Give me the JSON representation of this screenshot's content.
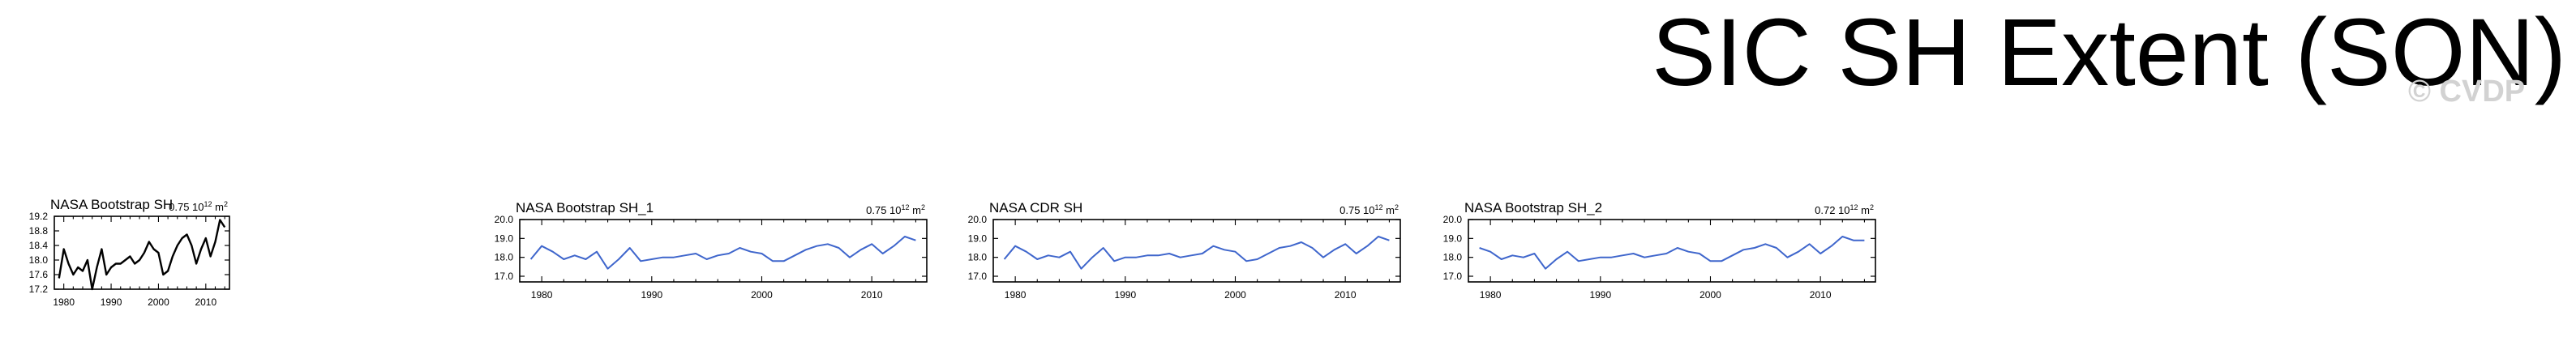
{
  "page": {
    "title": "SIC SH Extent (SON)",
    "watermark": "© CVDP"
  },
  "chart_data": [
    {
      "type": "line",
      "title": "NASA Bootstrap SH",
      "annotation": "0.75 10",
      "annotation_sup": "12",
      "annotation_unit": " m",
      "annotation_unit_sup": "2",
      "line_color": "#000000",
      "xlim": [
        1978,
        2015
      ],
      "ylim": [
        17.2,
        19.2
      ],
      "yticks": [
        "17.2",
        "17.6",
        "18.0",
        "18.4",
        "18.8",
        "19.2"
      ],
      "xticks": [
        "1980",
        "1990",
        "2000",
        "2010"
      ],
      "series": [
        {
          "x": [
            1979,
            1980,
            1981,
            1982,
            1983,
            1984,
            1985,
            1986,
            1987,
            1988,
            1989,
            1990,
            1991,
            1992,
            1993,
            1994,
            1995,
            1996,
            1997,
            1998,
            1999,
            2000,
            2001,
            2002,
            2003,
            2004,
            2005,
            2006,
            2007,
            2008,
            2009,
            2010,
            2011,
            2012,
            2013,
            2014
          ],
          "values": [
            17.5,
            18.3,
            17.9,
            17.6,
            17.8,
            17.7,
            18.0,
            17.2,
            17.8,
            18.3,
            17.6,
            17.8,
            17.9,
            17.9,
            18.0,
            18.1,
            17.9,
            18.0,
            18.2,
            18.5,
            18.3,
            18.2,
            17.6,
            17.7,
            18.1,
            18.4,
            18.6,
            18.7,
            18.4,
            17.9,
            18.3,
            18.6,
            18.1,
            18.5,
            19.1,
            18.9
          ]
        }
      ]
    },
    {
      "type": "line",
      "title": "NASA Bootstrap SH_1",
      "annotation": "0.75 10",
      "annotation_sup": "12",
      "annotation_unit": " m",
      "annotation_unit_sup": "2",
      "line_color": "#3f66cc",
      "xlim": [
        1978,
        2015
      ],
      "ylim": [
        16.7,
        20.0
      ],
      "yticks": [
        "17.0",
        "18.0",
        "19.0",
        "20.0"
      ],
      "xticks": [
        "1980",
        "1990",
        "2000",
        "2010"
      ],
      "series": [
        {
          "x": [
            1979,
            1980,
            1981,
            1982,
            1983,
            1984,
            1985,
            1986,
            1987,
            1988,
            1989,
            1990,
            1991,
            1992,
            1993,
            1994,
            1995,
            1996,
            1997,
            1998,
            1999,
            2000,
            2001,
            2002,
            2003,
            2004,
            2005,
            2006,
            2007,
            2008,
            2009,
            2010,
            2011,
            2012,
            2013,
            2014
          ],
          "values": [
            17.9,
            18.6,
            18.3,
            17.9,
            18.1,
            17.9,
            18.3,
            17.4,
            17.9,
            18.5,
            17.8,
            17.9,
            18.0,
            18.0,
            18.1,
            18.2,
            17.9,
            18.1,
            18.2,
            18.5,
            18.3,
            18.2,
            17.8,
            17.8,
            18.1,
            18.4,
            18.6,
            18.7,
            18.5,
            18.0,
            18.4,
            18.7,
            18.2,
            18.6,
            19.1,
            18.9
          ]
        }
      ]
    },
    {
      "type": "line",
      "title": "NASA CDR SH",
      "annotation": "0.75 10",
      "annotation_sup": "12",
      "annotation_unit": " m",
      "annotation_unit_sup": "2",
      "line_color": "#3f66cc",
      "xlim": [
        1978,
        2015
      ],
      "ylim": [
        16.7,
        20.0
      ],
      "yticks": [
        "17.0",
        "18.0",
        "19.0",
        "20.0"
      ],
      "xticks": [
        "1980",
        "1990",
        "2000",
        "2010"
      ],
      "series": [
        {
          "x": [
            1979,
            1980,
            1981,
            1982,
            1983,
            1984,
            1985,
            1986,
            1987,
            1988,
            1989,
            1990,
            1991,
            1992,
            1993,
            1994,
            1995,
            1996,
            1997,
            1998,
            1999,
            2000,
            2001,
            2002,
            2003,
            2004,
            2005,
            2006,
            2007,
            2008,
            2009,
            2010,
            2011,
            2012,
            2013,
            2014
          ],
          "values": [
            17.9,
            18.6,
            18.3,
            17.9,
            18.1,
            18.0,
            18.3,
            17.4,
            18.0,
            18.5,
            17.8,
            18.0,
            18.0,
            18.1,
            18.1,
            18.2,
            18.0,
            18.1,
            18.2,
            18.6,
            18.4,
            18.3,
            17.8,
            17.9,
            18.2,
            18.5,
            18.6,
            18.8,
            18.5,
            18.0,
            18.4,
            18.7,
            18.2,
            18.6,
            19.1,
            18.9
          ]
        }
      ]
    },
    {
      "type": "line",
      "title": "NASA Bootstrap SH_2",
      "annotation": "0.72 10",
      "annotation_sup": "12",
      "annotation_unit": " m",
      "annotation_unit_sup": "2",
      "line_color": "#3f66cc",
      "xlim": [
        1978,
        2015
      ],
      "ylim": [
        16.7,
        20.0
      ],
      "yticks": [
        "17.0",
        "18.0",
        "19.0",
        "20.0"
      ],
      "xticks": [
        "1980",
        "1990",
        "2000",
        "2010"
      ],
      "series": [
        {
          "x": [
            1979,
            1980,
            1981,
            1982,
            1983,
            1984,
            1985,
            1986,
            1987,
            1988,
            1989,
            1990,
            1991,
            1992,
            1993,
            1994,
            1995,
            1996,
            1997,
            1998,
            1999,
            2000,
            2001,
            2002,
            2003,
            2004,
            2005,
            2006,
            2007,
            2008,
            2009,
            2010,
            2011,
            2012,
            2013,
            2014
          ],
          "values": [
            18.5,
            18.3,
            17.9,
            18.1,
            18.0,
            18.2,
            17.4,
            17.9,
            18.3,
            17.8,
            17.9,
            18.0,
            18.0,
            18.1,
            18.2,
            18.0,
            18.1,
            18.2,
            18.5,
            18.3,
            18.2,
            17.8,
            17.8,
            18.1,
            18.4,
            18.5,
            18.7,
            18.5,
            18.0,
            18.3,
            18.7,
            18.2,
            18.6,
            19.1,
            18.9,
            18.9
          ]
        }
      ]
    }
  ]
}
